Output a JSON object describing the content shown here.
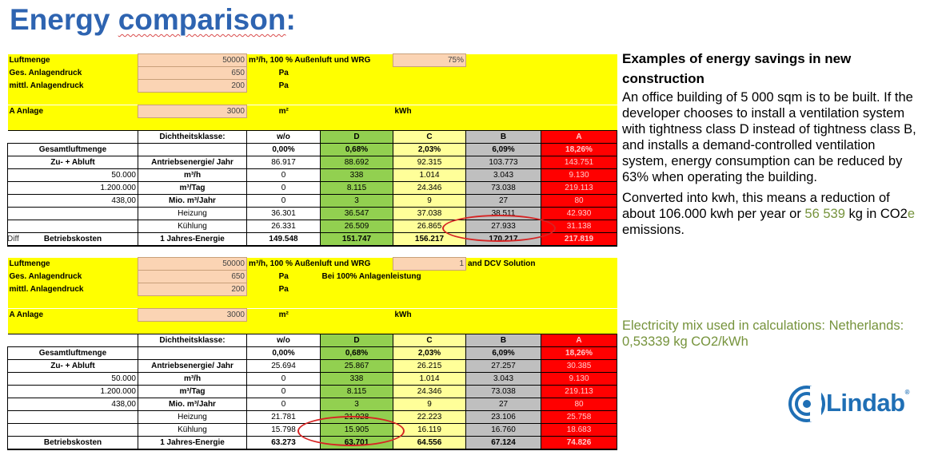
{
  "title_part1": "Energy ",
  "title_part2": "comparison",
  "title_part3": ":",
  "table1": {
    "luftmenge_label": "Luftmenge",
    "luftmenge_value": "50000",
    "luftmenge_unit": "m³/h, 100 % Außenluft und WRG",
    "wrg_value": "75%",
    "ges_label": "Ges. Anlagendruck",
    "ges_value": "650",
    "pa1": "Pa",
    "mittl_label": "mittl. Anlagendruck",
    "mittl_value": "200",
    "pa2": "Pa",
    "a_label": "A Anlage",
    "a_value": "3000",
    "m2": "m²",
    "kwh": "kWh",
    "header": [
      "Dichtheitsklasse:",
      "w/o",
      "D",
      "C",
      "B",
      "A"
    ],
    "rows": [
      [
        "Gesamtluftmenge",
        "",
        "0,00%",
        "0,68%",
        "2,03%",
        "6,09%",
        "18,26%"
      ],
      [
        "Zu- + Abluft",
        "Antriebsenergie/ Jahr",
        "86.917",
        "88.692",
        "92.315",
        "103.773",
        "143.751"
      ],
      [
        "50.000",
        "m³/h",
        "0",
        "338",
        "1.014",
        "3.043",
        "9.130"
      ],
      [
        "1.200.000",
        "m³/Tag",
        "0",
        "8.115",
        "24.346",
        "73.038",
        "219.113"
      ],
      [
        "438,00",
        "Mio. m³/Jahr",
        "0",
        "3",
        "9",
        "27",
        "80"
      ],
      [
        "",
        "Heizung",
        "36.301",
        "36.547",
        "37.038",
        "38.511",
        "42.930"
      ],
      [
        "",
        "Kühlung",
        "26.331",
        "26.509",
        "26.865",
        "27.933",
        "31.138"
      ],
      [
        "Betriebskosten",
        "1 Jahres-Energie",
        "149.548",
        "151.747",
        "156.217",
        "170.217",
        "217.819"
      ]
    ]
  },
  "diff_label": "Diff",
  "table2": {
    "luftmenge_label": "Luftmenge",
    "luftmenge_value": "50000",
    "luftmenge_unit": "m³/h, 100 % Außenluft und WRG",
    "wrg_value": "1",
    "dcv_label": "and DCV Solution",
    "ges_label": "Ges. Anlagendruck",
    "ges_value": "650",
    "pa1": "Pa",
    "bei_label": "Bei 100% Anlagenleistung",
    "mittl_label": "mittl. Anlagendruck",
    "mittl_value": "200",
    "pa2": "Pa",
    "a_label": "A Anlage",
    "a_value": "3000",
    "m2": "m²",
    "kwh": "kWh",
    "header": [
      "Dichtheitsklasse:",
      "w/o",
      "D",
      "C",
      "B",
      "A"
    ],
    "rows": [
      [
        "Gesamtluftmenge",
        "",
        "0,00%",
        "0,68%",
        "2,03%",
        "6,09%",
        "18,26%"
      ],
      [
        "Zu- + Abluft",
        "Antriebsenergie/ Jahr",
        "25.694",
        "25.867",
        "26.215",
        "27.257",
        "30.385"
      ],
      [
        "50.000",
        "m³/h",
        "0",
        "338",
        "1.014",
        "3.043",
        "9.130"
      ],
      [
        "1.200.000",
        "m³/Tag",
        "0",
        "8.115",
        "24.346",
        "73.038",
        "219.113"
      ],
      [
        "438,00",
        "Mio. m³/Jahr",
        "0",
        "3",
        "9",
        "27",
        "80"
      ],
      [
        "",
        "Heizung",
        "21.781",
        "21.928",
        "22.223",
        "23.106",
        "25.758"
      ],
      [
        "",
        "Kühlung",
        "15.798",
        "15.905",
        "16.119",
        "16.760",
        "18.683"
      ],
      [
        "Betriebskosten",
        "1 Jahres-Energie",
        "63.273",
        "63.701",
        "64.556",
        "67.124",
        "74.826"
      ]
    ]
  },
  "right": {
    "heading": "Examples of energy savings in new construction",
    "para1": "An office building of 5 000 sqm is to be built. If the developer chooses to install a ventilation system with tightness class D instead of tightness class B, and installs a demand-controlled ventilation system, energy consumption can be reduced by 63% when operating the building.",
    "para2_a": "Converted into kwh, this means a reduction of about 106.000 kwh per year or ",
    "para2_b": "56 539",
    "para2_c": " kg in CO2",
    "para2_d": "e",
    "para2_e": " emissions."
  },
  "mix": "Electricity mix used in calculations:  Netherlands: 0,53339 kg CO2/kWh",
  "logo_text": "Lindab",
  "logo_reg": "®",
  "colors": {
    "title": "#2e64b1",
    "green_text": "#76933c",
    "yellow": "#ffff00",
    "green": "#92d050",
    "red": "#ff0000",
    "grey": "#bfbfbf",
    "lightyellow": "#ffff99",
    "logo": "#1f6fb5",
    "ellipse": "#d62424"
  }
}
